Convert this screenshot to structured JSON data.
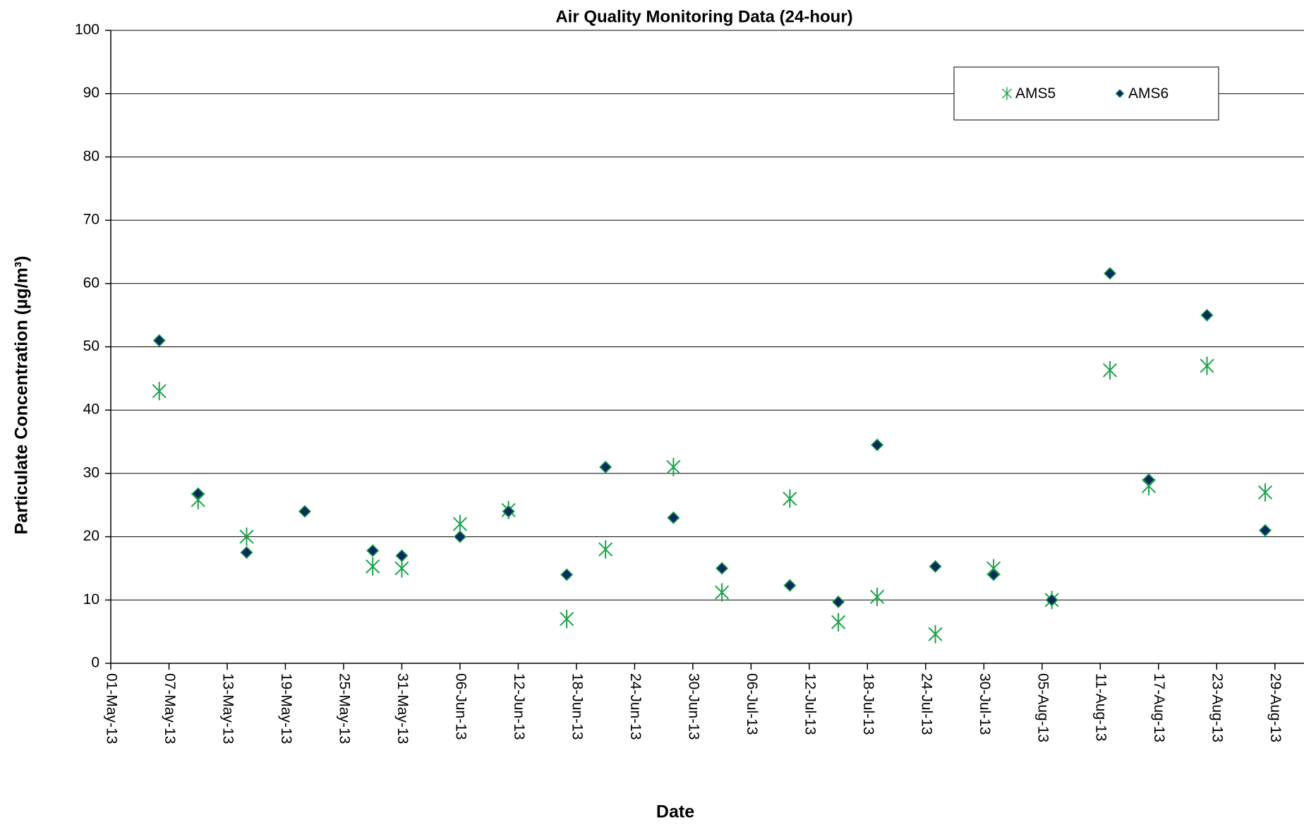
{
  "chart_data": {
    "type": "scatter",
    "title": "Air Quality Monitoring Data (24-hour)",
    "x_label": "Date",
    "y_label": "Particulate Concentration (µg/m³)",
    "x": [
      "2013-05-06",
      "2013-05-10",
      "2013-05-15",
      "2013-05-21",
      "2013-05-28",
      "2013-05-31",
      "2013-06-06",
      "2013-06-11",
      "2013-06-17",
      "2013-06-21",
      "2013-06-28",
      "2013-07-03",
      "2013-07-10",
      "2013-07-15",
      "2013-07-19",
      "2013-07-25",
      "2013-07-31",
      "2013-08-06",
      "2013-08-12",
      "2013-08-16",
      "2013-08-22",
      "2013-08-28"
    ],
    "series": [
      {
        "name": "AMS5",
        "color": "#1aa34a",
        "marker": "star",
        "values": [
          43,
          25.8,
          20,
          null,
          15.3,
          15,
          22,
          24.2,
          7,
          18,
          31,
          11.2,
          26,
          6.5,
          10.5,
          4.6,
          15,
          10,
          46.3,
          28,
          47,
          27
        ]
      },
      {
        "name": "AMS6",
        "color": "#0a2a5e",
        "marker": "diamond",
        "values": [
          51,
          26.8,
          17.5,
          24,
          17.8,
          17,
          20,
          24,
          14,
          31,
          23,
          15,
          12.3,
          9.7,
          34.5,
          15.3,
          14,
          10,
          61.6,
          29,
          55,
          21
        ]
      }
    ],
    "xlim": [
      "2013-05-01",
      "2013-09-01"
    ],
    "xticks": [
      {
        "value": "2013-05-01",
        "label": "01-May-13"
      },
      {
        "value": "2013-05-07",
        "label": "07-May-13"
      },
      {
        "value": "2013-05-13",
        "label": "13-May-13"
      },
      {
        "value": "2013-05-19",
        "label": "19-May-13"
      },
      {
        "value": "2013-05-25",
        "label": "25-May-13"
      },
      {
        "value": "2013-05-31",
        "label": "31-May-13"
      },
      {
        "value": "2013-06-06",
        "label": "06-Jun-13"
      },
      {
        "value": "2013-06-12",
        "label": "12-Jun-13"
      },
      {
        "value": "2013-06-18",
        "label": "18-Jun-13"
      },
      {
        "value": "2013-06-24",
        "label": "24-Jun-13"
      },
      {
        "value": "2013-06-30",
        "label": "30-Jun-13"
      },
      {
        "value": "2013-07-06",
        "label": "06-Jul-13"
      },
      {
        "value": "2013-07-12",
        "label": "12-Jul-13"
      },
      {
        "value": "2013-07-18",
        "label": "18-Jul-13"
      },
      {
        "value": "2013-07-24",
        "label": "24-Jul-13"
      },
      {
        "value": "2013-07-30",
        "label": "30-Jul-13"
      },
      {
        "value": "2013-08-05",
        "label": "05-Aug-13"
      },
      {
        "value": "2013-08-11",
        "label": "11-Aug-13"
      },
      {
        "value": "2013-08-17",
        "label": "17-Aug-13"
      },
      {
        "value": "2013-08-23",
        "label": "23-Aug-13"
      },
      {
        "value": "2013-08-29",
        "label": "29-Aug-13"
      }
    ],
    "ylim": [
      0,
      100
    ],
    "yticks": [
      0,
      10,
      20,
      30,
      40,
      50,
      60,
      70,
      80,
      90,
      100
    ],
    "grid": true,
    "legend": "top-right"
  }
}
